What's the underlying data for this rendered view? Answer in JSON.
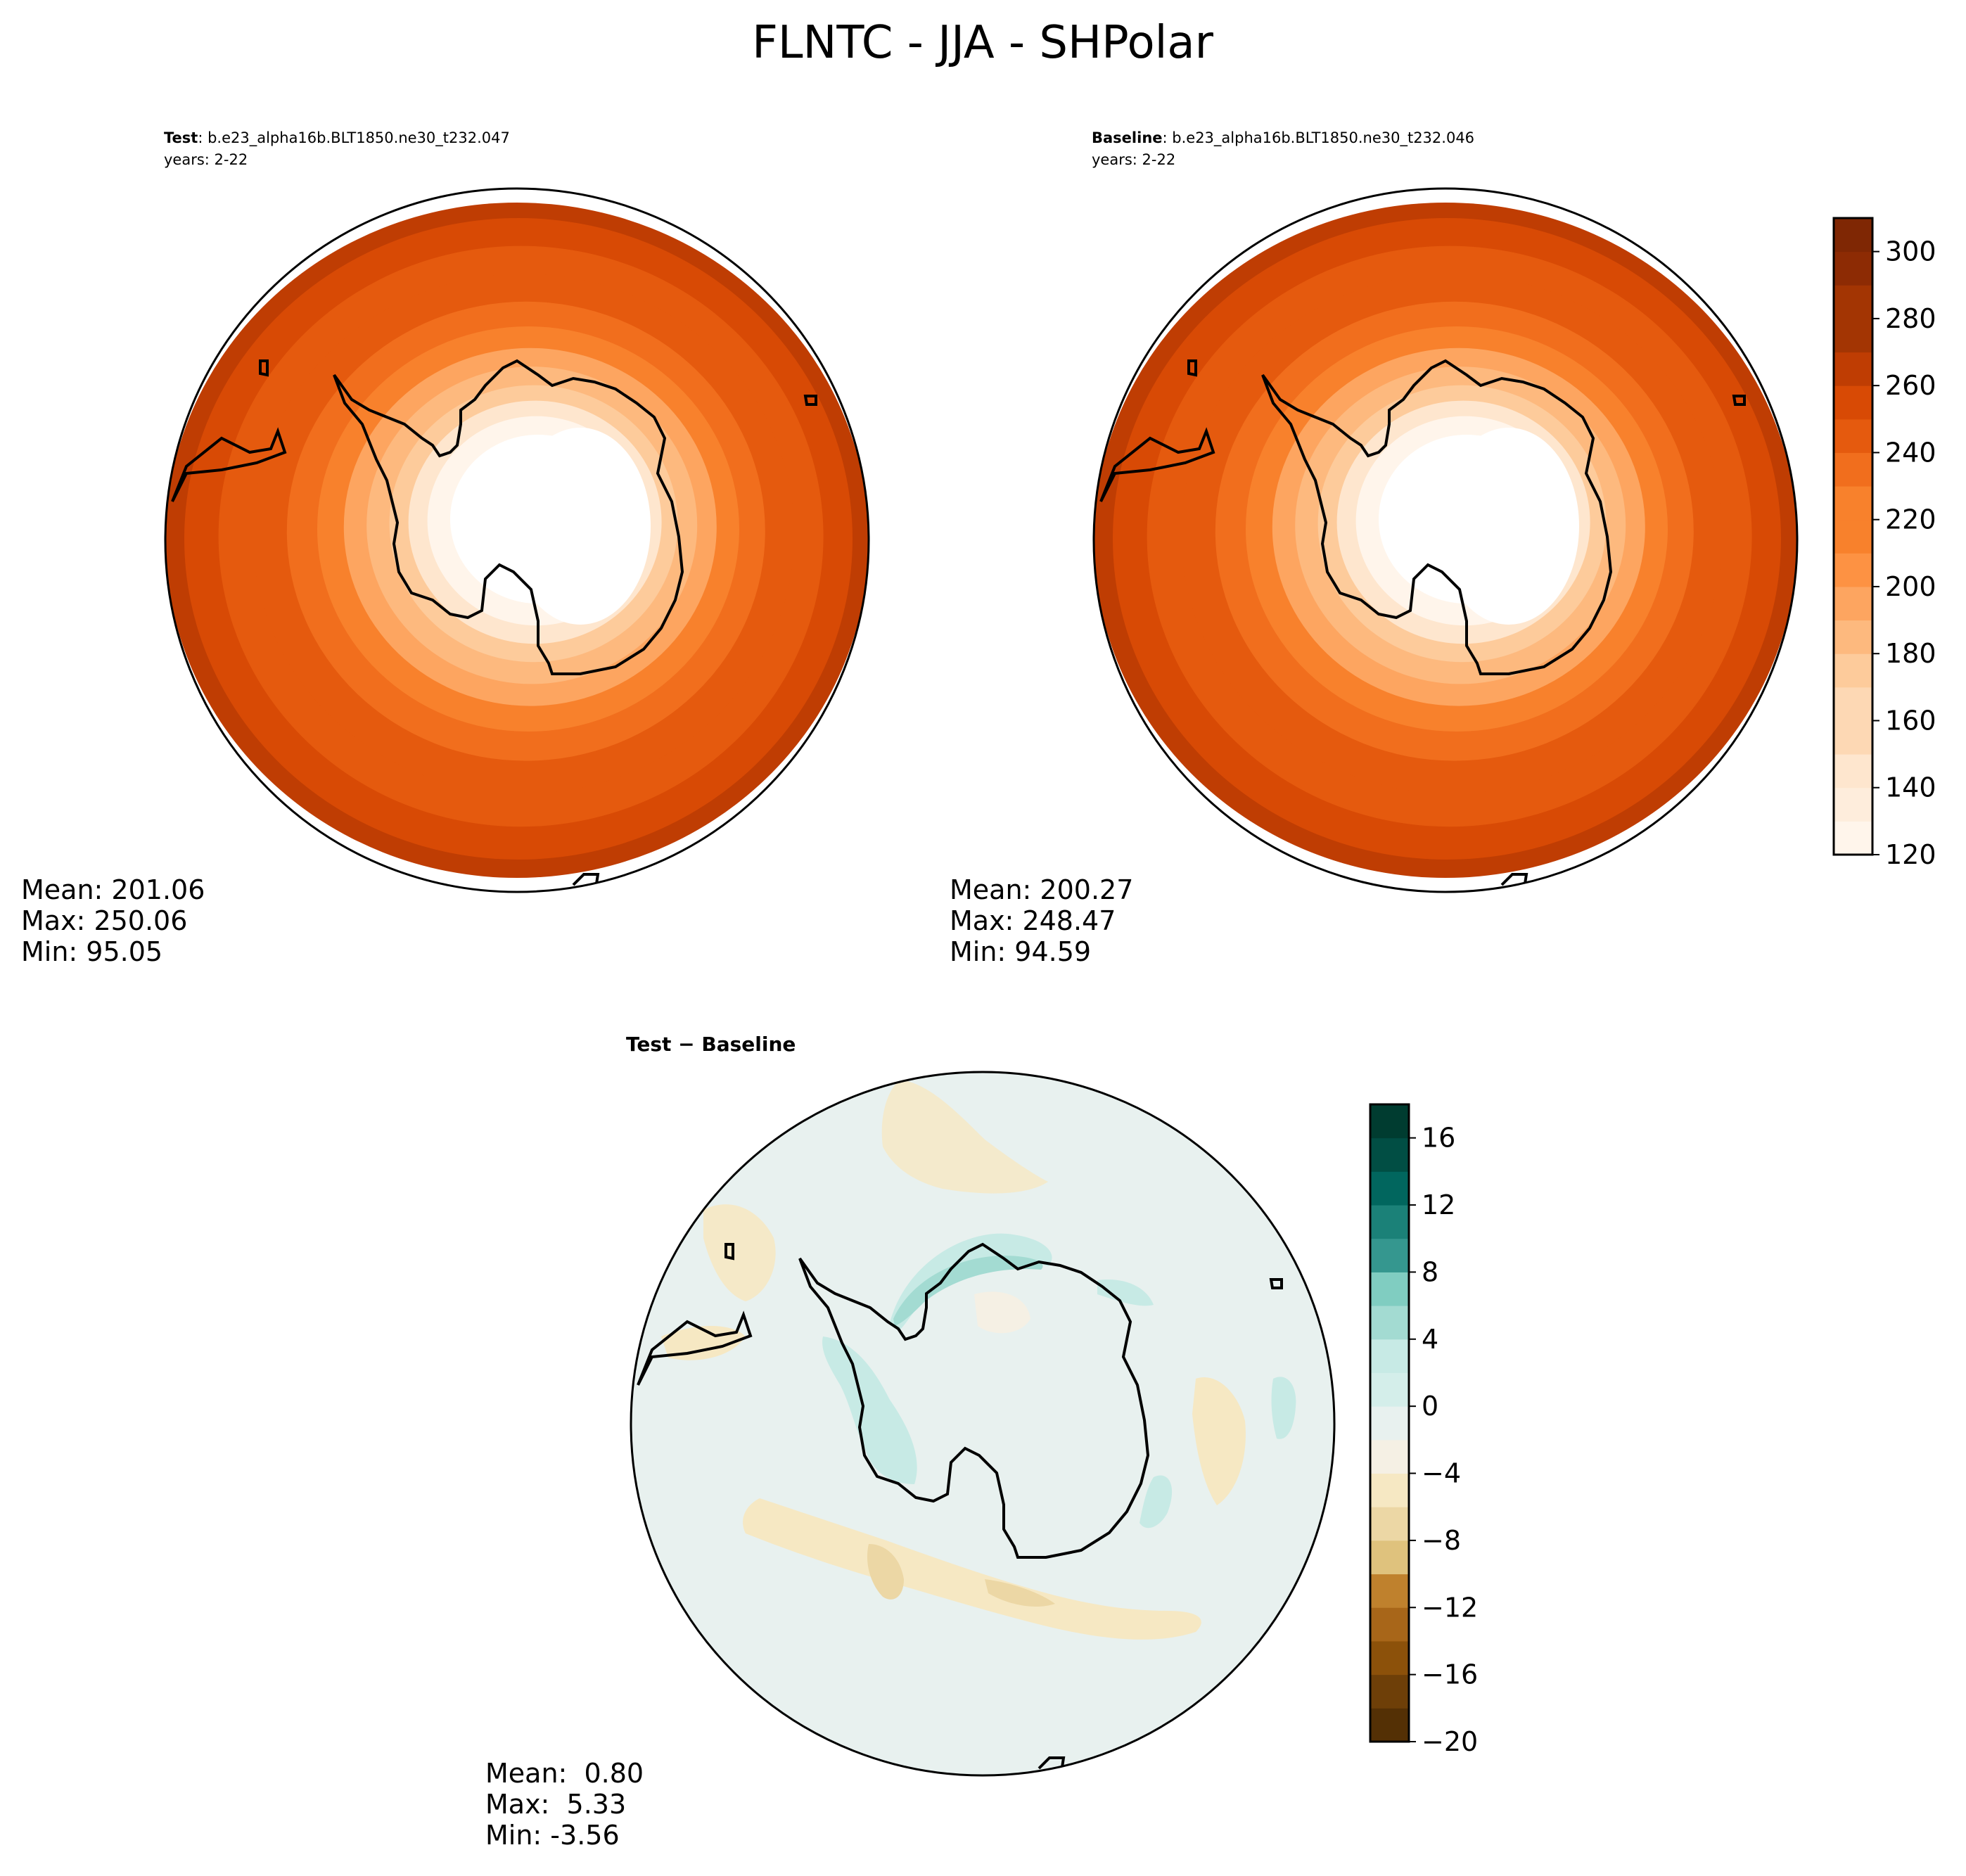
{
  "figure_title": "FLNTC - JJA - SHPolar",
  "colors": {
    "abs_cmap": [
      "#fff5eb",
      "#feeddc",
      "#fee6ce",
      "#fdd8b4",
      "#fdcb9b",
      "#fdb97e",
      "#fda560",
      "#fd9243",
      "#f8812c",
      "#f16e1d",
      "#e55a0e",
      "#d84a05",
      "#bf3d03",
      "#a33503",
      "#8d2b04",
      "#7f2704"
    ],
    "diff_cmap": [
      "#543005",
      "#6e3f08",
      "#8c510a",
      "#a86619",
      "#bf812d",
      "#cfa355",
      "#dfc27d",
      "#ecd7a5",
      "#f6e8c3",
      "#f5f0e4",
      "#e8f1ef",
      "#d4eeea",
      "#c7eae5",
      "#a3dbd2",
      "#80cdc1",
      "#5ab2a7",
      "#35978f",
      "#1b8178",
      "#01665e",
      "#014e44",
      "#003c30"
    ],
    "coastline": "#000000",
    "bounds": "#000000"
  },
  "panels": {
    "test": {
      "label_bold": "Test",
      "label_rest": ": b.e23_alpha16b.BLT1850.ne30_t232.047",
      "years": "years: 2-22",
      "stats": {
        "mean": "Mean: 201.06",
        "max": "Max: 250.06",
        "min": "Min: 95.05"
      }
    },
    "baseline": {
      "label_bold": "Baseline",
      "label_rest": ": b.e23_alpha16b.BLT1850.ne30_t232.046",
      "years": "years: 2-22",
      "stats": {
        "mean": "Mean: 200.27",
        "max": "Max: 248.47",
        "min": "Min: 94.59"
      }
    },
    "diff": {
      "label_bold": "Test − Baseline",
      "stats": {
        "mean": "Mean:  0.80",
        "max": "Max:  5.33",
        "min": "Min: -3.56"
      }
    }
  },
  "chart_data": [
    {
      "type": "heatmap",
      "title": "Test",
      "projection": "south polar stereographic",
      "variable": "FLNTC",
      "season": "JJA",
      "color_levels": [
        120,
        130,
        140,
        150,
        160,
        170,
        180,
        190,
        200,
        210,
        220,
        230,
        240,
        250,
        260,
        270,
        280,
        290,
        300,
        310
      ],
      "contour_bands": [
        {
          "radius_fraction": 1.0,
          "value": 245
        },
        {
          "radius_fraction": 0.95,
          "value": 235
        },
        {
          "radius_fraction": 0.86,
          "value": 228
        },
        {
          "radius_fraction": 0.77,
          "value": 220
        },
        {
          "radius_fraction": 0.68,
          "value": 212
        },
        {
          "radius_fraction": 0.6,
          "value": 200
        },
        {
          "radius_fraction": 0.53,
          "value": 185
        },
        {
          "radius_fraction": 0.47,
          "value": 172
        },
        {
          "radius_fraction": 0.41,
          "value": 160
        },
        {
          "radius_fraction": 0.36,
          "value": 145
        },
        {
          "radius_fraction": 0.31,
          "value": 128
        },
        {
          "radius_fraction": 0.25,
          "value": 110
        }
      ],
      "stats": {
        "mean": 201.06,
        "max": 250.06,
        "min": 95.05
      }
    },
    {
      "type": "heatmap",
      "title": "Baseline",
      "projection": "south polar stereographic",
      "variable": "FLNTC",
      "season": "JJA",
      "color_levels": [
        120,
        130,
        140,
        150,
        160,
        170,
        180,
        190,
        200,
        210,
        220,
        230,
        240,
        250,
        260,
        270,
        280,
        290,
        300,
        310
      ],
      "contour_bands": [
        {
          "radius_fraction": 1.0,
          "value": 245
        },
        {
          "radius_fraction": 0.95,
          "value": 235
        },
        {
          "radius_fraction": 0.86,
          "value": 228
        },
        {
          "radius_fraction": 0.77,
          "value": 220
        },
        {
          "radius_fraction": 0.68,
          "value": 212
        },
        {
          "radius_fraction": 0.6,
          "value": 200
        },
        {
          "radius_fraction": 0.53,
          "value": 185
        },
        {
          "radius_fraction": 0.47,
          "value": 172
        },
        {
          "radius_fraction": 0.41,
          "value": 160
        },
        {
          "radius_fraction": 0.36,
          "value": 145
        },
        {
          "radius_fraction": 0.31,
          "value": 128
        },
        {
          "radius_fraction": 0.25,
          "value": 110
        }
      ],
      "stats": {
        "mean": 200.27,
        "max": 248.47,
        "min": 94.59
      }
    },
    {
      "type": "heatmap",
      "title": "Test − Baseline",
      "projection": "south polar stereographic",
      "color_levels": [
        -20,
        -18,
        -16,
        -14,
        -12,
        -10,
        -8,
        -6,
        -4,
        -2,
        0,
        2,
        4,
        6,
        8,
        10,
        12,
        14,
        16,
        18
      ],
      "stats": {
        "mean": 0.8,
        "max": 5.33,
        "min": -3.56
      }
    }
  ],
  "colorbars": {
    "abs": {
      "ticks": [
        "120",
        "140",
        "160",
        "180",
        "200",
        "220",
        "240",
        "260",
        "280",
        "300"
      ],
      "tick_values": [
        120,
        140,
        160,
        180,
        200,
        220,
        240,
        260,
        280,
        300
      ],
      "range": [
        120,
        310
      ]
    },
    "diff": {
      "ticks": [
        "−20",
        "−16",
        "−12",
        "−8",
        "−4",
        "0",
        "4",
        "8",
        "12",
        "16"
      ],
      "tick_values": [
        -20,
        -16,
        -12,
        -8,
        -4,
        0,
        4,
        8,
        12,
        16
      ],
      "range": [
        -20,
        18
      ]
    }
  }
}
